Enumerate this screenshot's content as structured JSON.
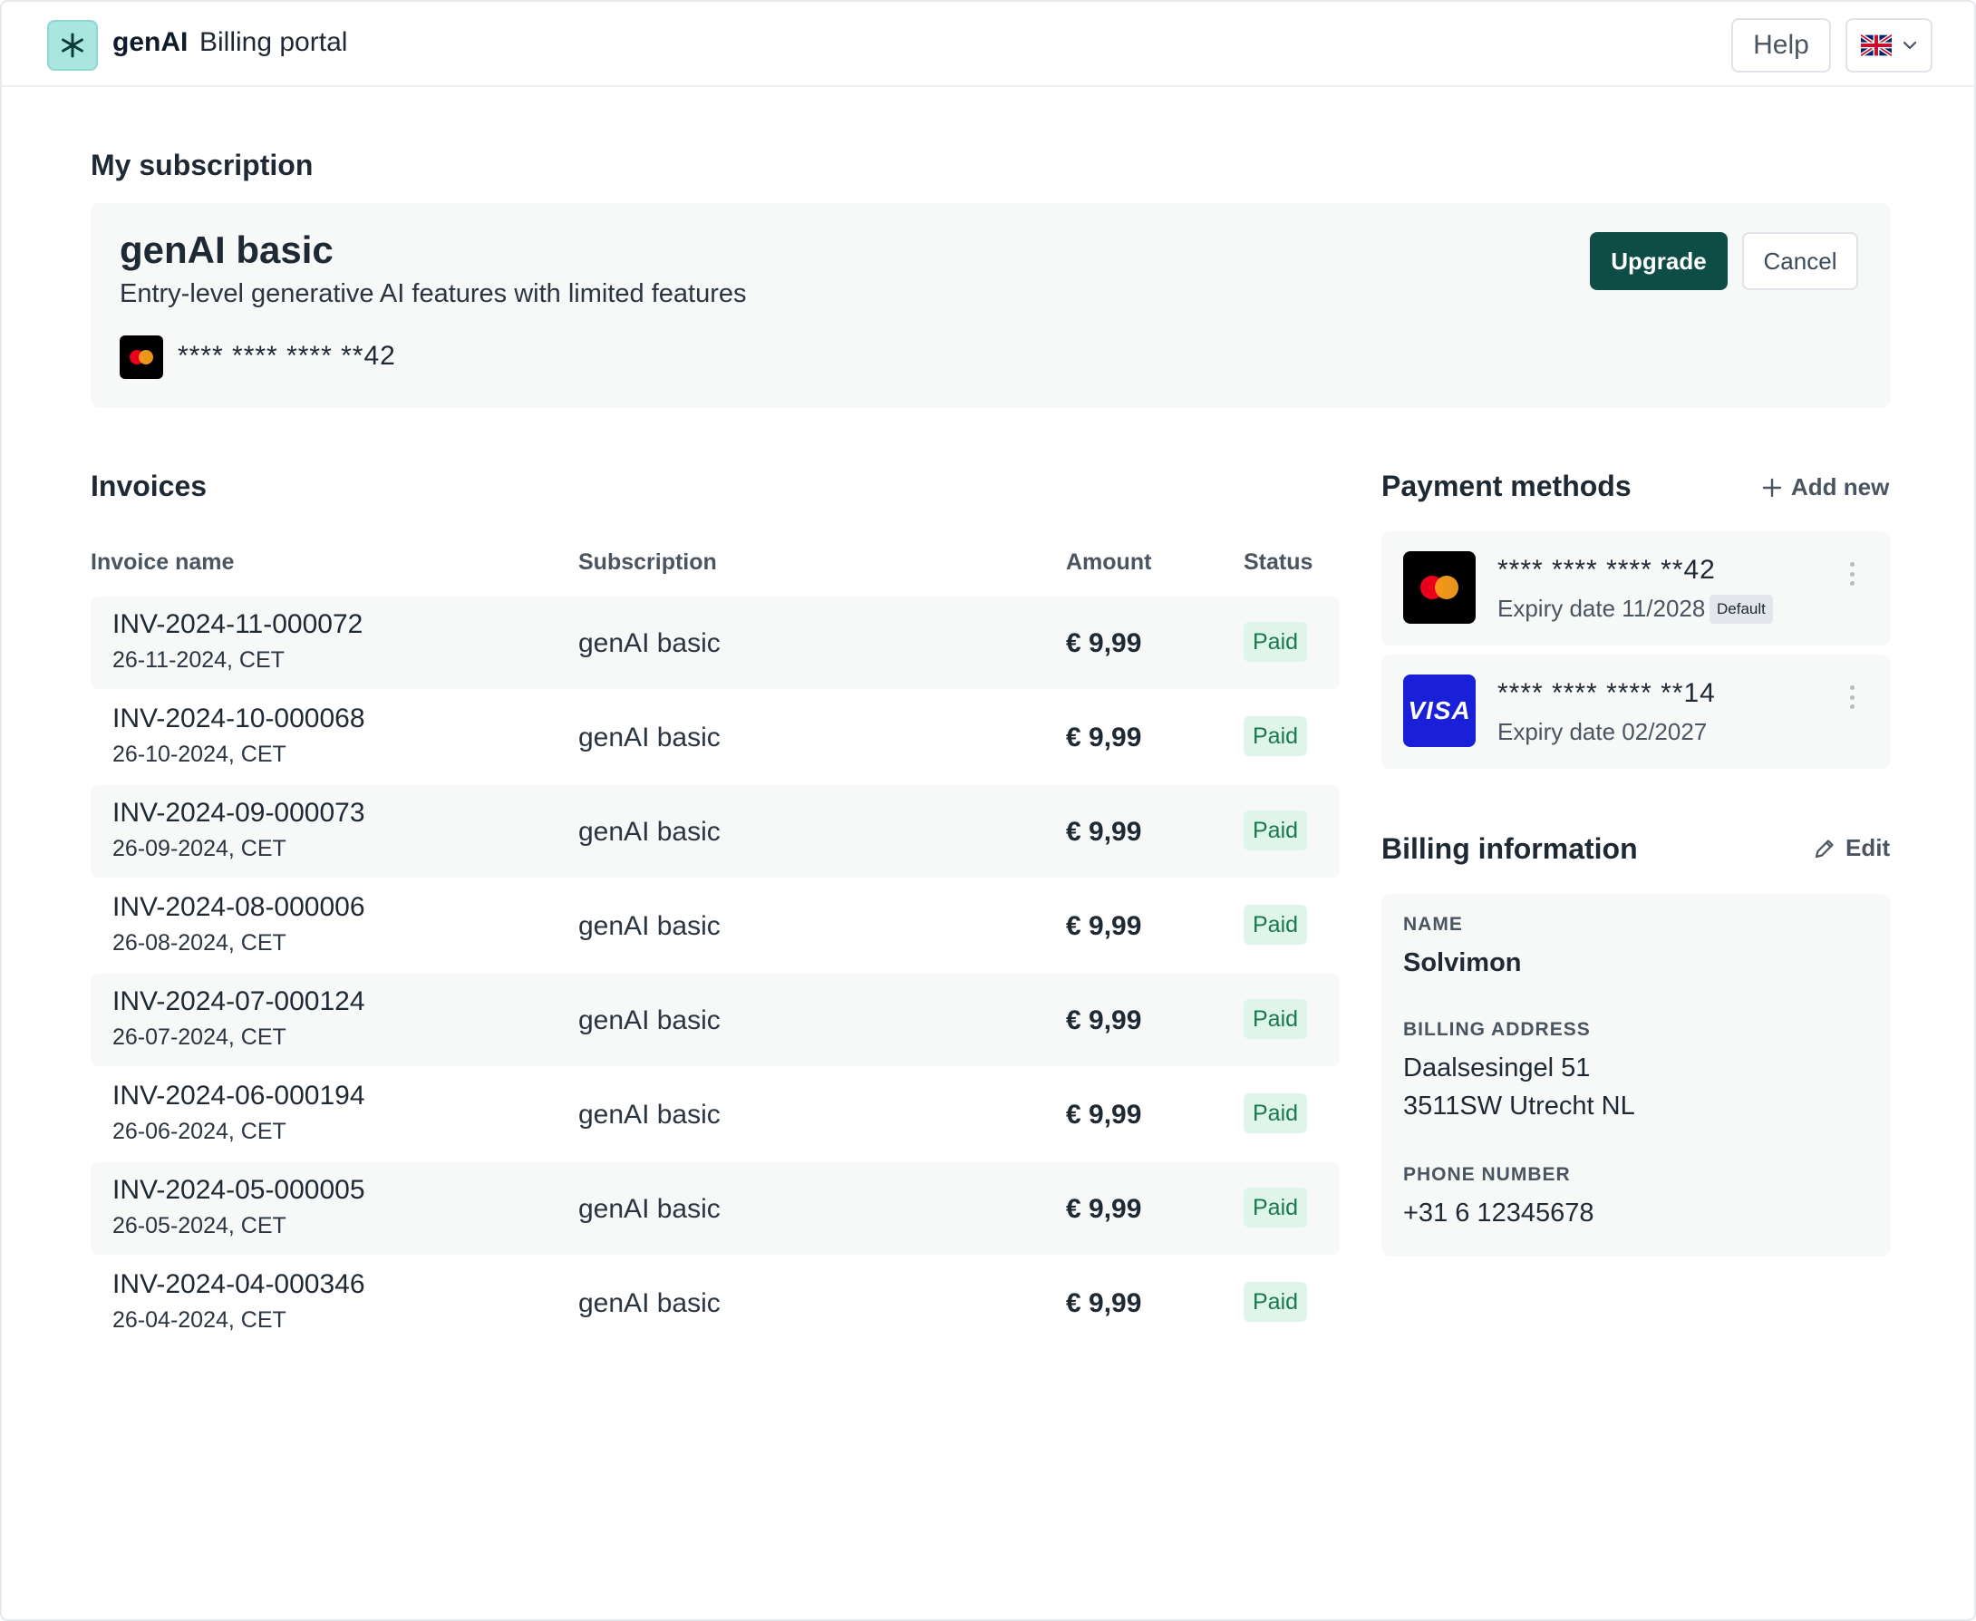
{
  "header": {
    "brand": "genAI",
    "portal_label": "Billing portal",
    "help_label": "Help",
    "language_icon": "uk-flag-icon"
  },
  "subscription": {
    "section_title": "My subscription",
    "plan_name": "genAI basic",
    "plan_description": "Entry-level generative AI features with limited features",
    "card_number": "**** **** **** **42",
    "upgrade_label": "Upgrade",
    "cancel_label": "Cancel"
  },
  "invoices": {
    "section_title": "Invoices",
    "columns": [
      "Invoice name",
      "Subscription",
      "Amount",
      "Status"
    ],
    "rows": [
      {
        "name": "INV-2024-11-000072",
        "date": "26-11-2024, CET",
        "subscription": "genAI basic",
        "amount": "€ 9,99",
        "status": "Paid"
      },
      {
        "name": "INV-2024-10-000068",
        "date": "26-10-2024, CET",
        "subscription": "genAI basic",
        "amount": "€ 9,99",
        "status": "Paid"
      },
      {
        "name": "INV-2024-09-000073",
        "date": "26-09-2024, CET",
        "subscription": "genAI basic",
        "amount": "€ 9,99",
        "status": "Paid"
      },
      {
        "name": "INV-2024-08-000006",
        "date": "26-08-2024, CET",
        "subscription": "genAI basic",
        "amount": "€ 9,99",
        "status": "Paid"
      },
      {
        "name": "INV-2024-07-000124",
        "date": "26-07-2024, CET",
        "subscription": "genAI basic",
        "amount": "€ 9,99",
        "status": "Paid"
      },
      {
        "name": "INV-2024-06-000194",
        "date": "26-06-2024, CET",
        "subscription": "genAI basic",
        "amount": "€ 9,99",
        "status": "Paid"
      },
      {
        "name": "INV-2024-05-000005",
        "date": "26-05-2024, CET",
        "subscription": "genAI basic",
        "amount": "€ 9,99",
        "status": "Paid"
      },
      {
        "name": "INV-2024-04-000346",
        "date": "26-04-2024, CET",
        "subscription": "genAI basic",
        "amount": "€ 9,99",
        "status": "Paid"
      }
    ]
  },
  "payment_methods": {
    "section_title": "Payment methods",
    "add_new_label": "Add new",
    "cards": [
      {
        "brand_icon": "mastercard-icon",
        "number": "**** **** **** **42",
        "expiry": "Expiry date 11/2028",
        "default_label": "Default"
      },
      {
        "brand_icon": "visa-icon",
        "brand_text": "VISA",
        "number": "**** **** **** **14",
        "expiry": "Expiry date 02/2027"
      }
    ]
  },
  "billing_info": {
    "section_title": "Billing information",
    "edit_label": "Edit",
    "name_label": "NAME",
    "name_value": "Solvimon",
    "address_label": "BILLING ADDRESS",
    "address_line1": "Daalsesingel 51",
    "address_line2": "3511SW Utrecht NL",
    "phone_label": "PHONE NUMBER",
    "phone_value": "+31 6 12345678"
  },
  "colors": {
    "accent": "#0e4d45",
    "logo_bg": "#a8e6df",
    "paid_bg": "#e0f5ea",
    "paid_text": "#18794e",
    "visa_blue": "#1a1fd8"
  }
}
